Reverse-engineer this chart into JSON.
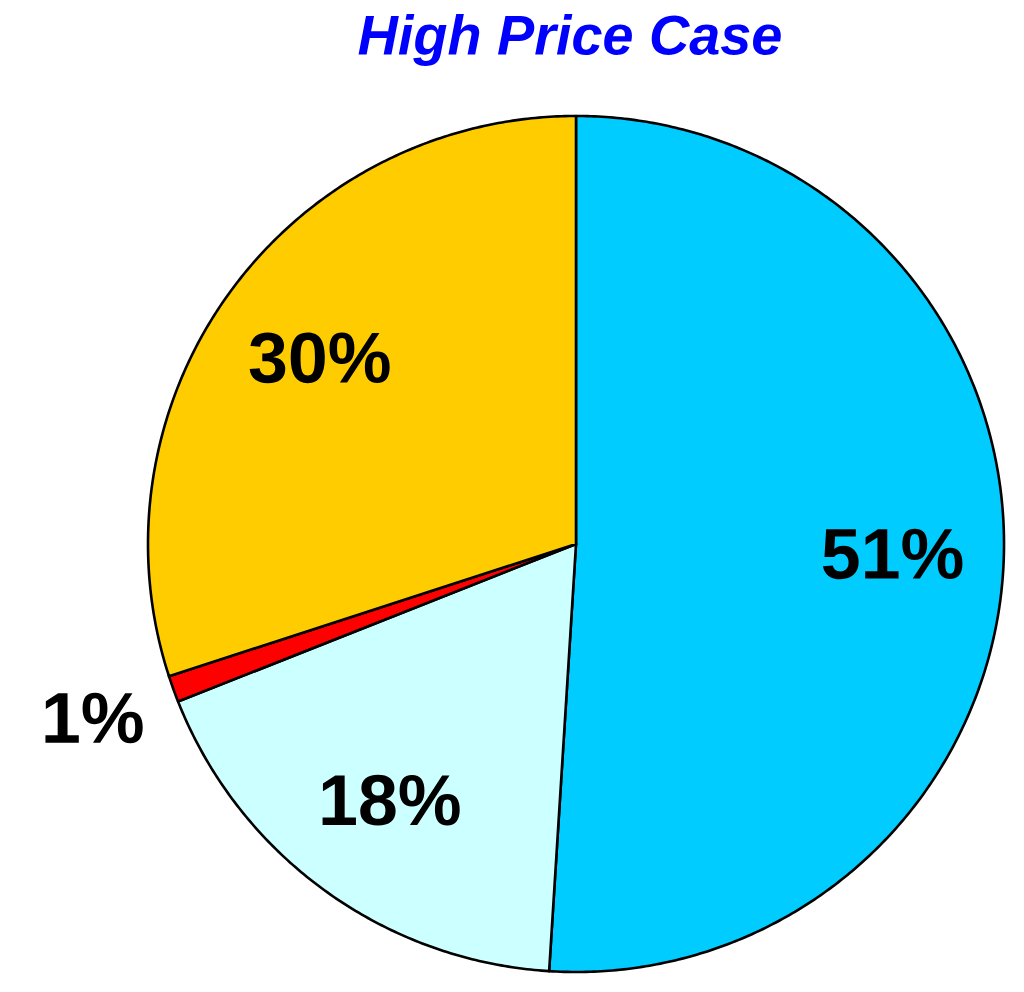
{
  "chart_data": {
    "type": "pie",
    "title": "High Price Case",
    "categories": [
      null,
      null,
      null,
      null
    ],
    "values": [
      51,
      18,
      1,
      30
    ],
    "colors": [
      "#00ccff",
      "#ccffff",
      "#ff0000",
      "#ffcc00"
    ],
    "value_labels": [
      "51%",
      "18%",
      "1%",
      "30%"
    ]
  }
}
